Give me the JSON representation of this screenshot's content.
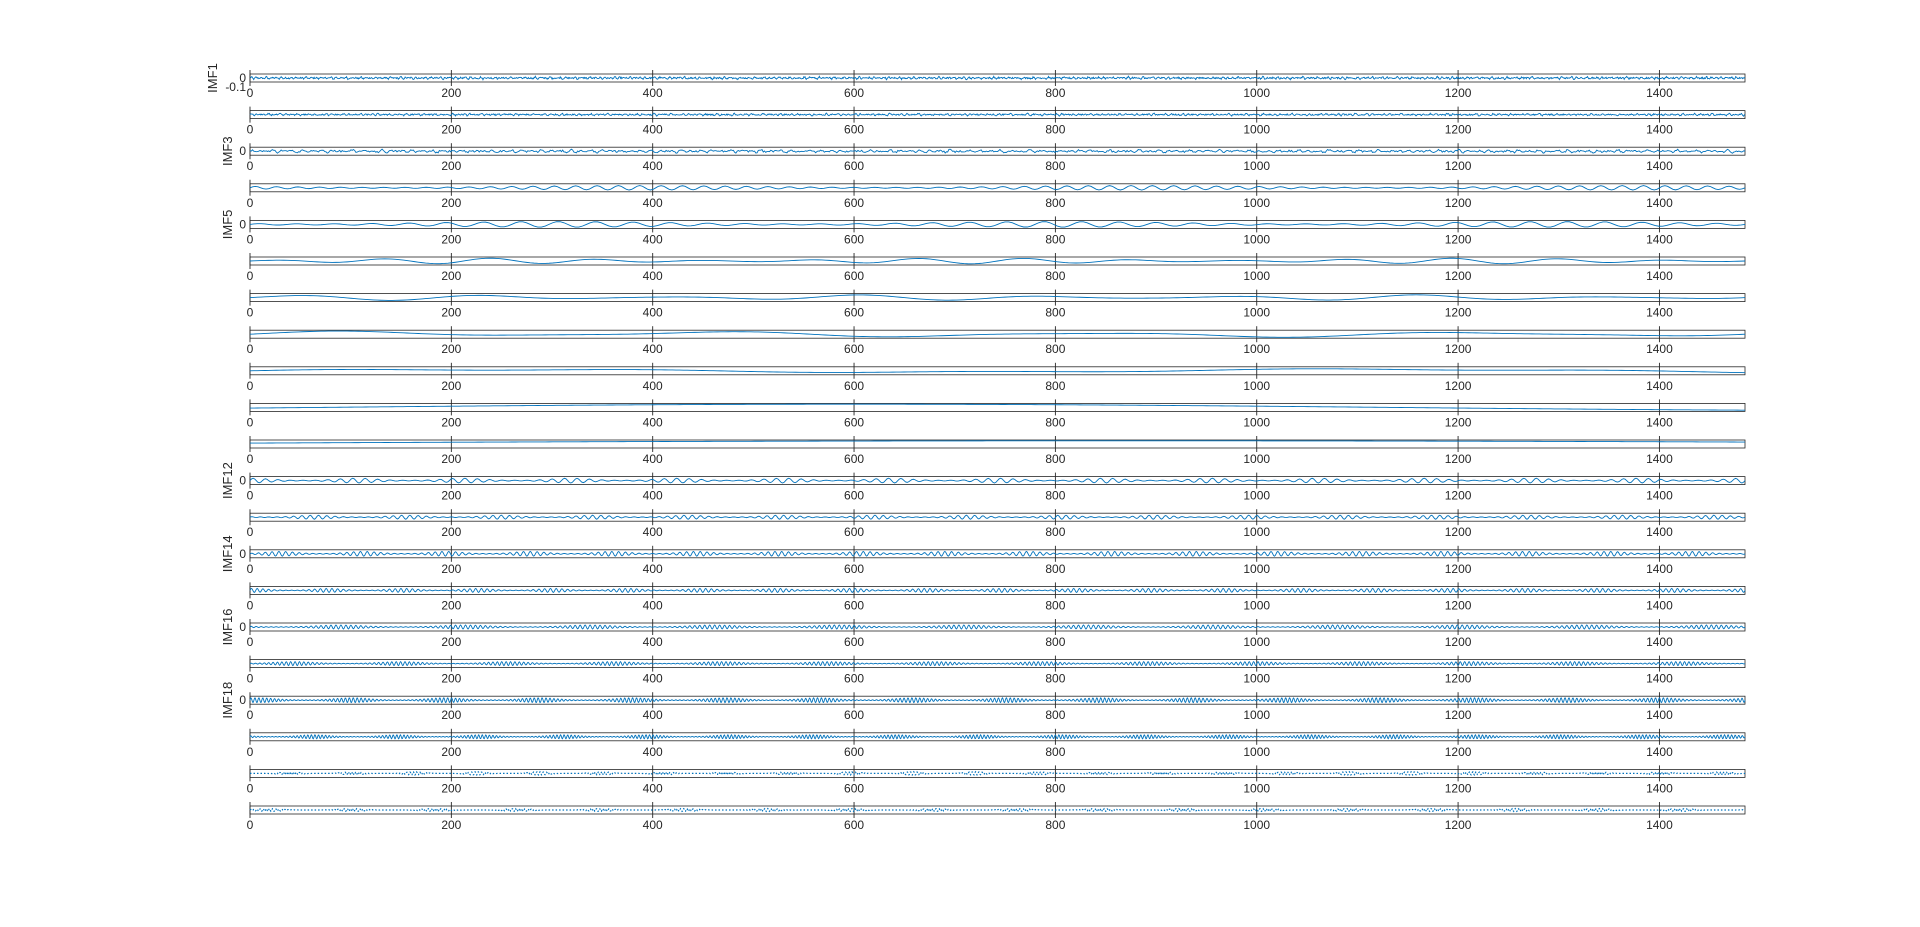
{
  "chart_data": {
    "type": "line",
    "title": "",
    "xlabel": "",
    "x_range": [
      0,
      1485
    ],
    "xticks": [
      0,
      200,
      400,
      600,
      800,
      1000,
      1200,
      1400
    ],
    "xtick_labels": [
      "0",
      "200",
      "400",
      "600",
      "800",
      "1000",
      "1200",
      "1400"
    ],
    "grid": true,
    "line_color": "#0072BD",
    "subplots": [
      {
        "ylabel": "IMF1",
        "ytick_labels": [
          "0",
          "-0.1"
        ],
        "style": "noise",
        "cycles": 300,
        "amplitude": 0.45
      },
      {
        "ylabel": "",
        "ytick_labels": [],
        "style": "noise",
        "cycles": 260,
        "amplitude": 0.4
      },
      {
        "ylabel": "IMF3",
        "ytick_labels": [
          "0"
        ],
        "style": "noise",
        "cycles": 150,
        "amplitude": 0.55
      },
      {
        "ylabel": "",
        "ytick_labels": [],
        "style": "wave",
        "cycles": 70,
        "amplitude": 0.55
      },
      {
        "ylabel": "IMF5",
        "ytick_labels": [
          "0"
        ],
        "style": "wave",
        "cycles": 40,
        "amplitude": 0.7
      },
      {
        "ylabel": "",
        "ytick_labels": [],
        "style": "wave",
        "cycles": 14,
        "amplitude": 0.7
      },
      {
        "ylabel": "",
        "ytick_labels": [],
        "style": "wave",
        "cycles": 8,
        "amplitude": 0.7
      },
      {
        "ylabel": "",
        "ytick_labels": [],
        "style": "wave",
        "cycles": 4,
        "amplitude": 0.8
      },
      {
        "ylabel": "",
        "ytick_labels": [],
        "style": "wave",
        "cycles": 1.6,
        "amplitude": 0.8
      },
      {
        "ylabel": "",
        "ytick_labels": [],
        "style": "trend",
        "cycles": 0.7,
        "amplitude": 0.8
      },
      {
        "ylabel": "",
        "ytick_labels": [],
        "style": "trend",
        "cycles": 0.35,
        "amplitude": 0.8
      },
      {
        "ylabel": "IMF12",
        "ytick_labels": [
          "0"
        ],
        "style": "burst",
        "cycles": 120,
        "amplitude": 0.6
      },
      {
        "ylabel": "",
        "ytick_labels": [],
        "style": "burst",
        "cycles": 180,
        "amplitude": 0.5
      },
      {
        "ylabel": "IMF14",
        "ytick_labels": [
          "0"
        ],
        "style": "burst",
        "cycles": 220,
        "amplitude": 0.6
      },
      {
        "ylabel": "",
        "ytick_labels": [],
        "style": "burst",
        "cycles": 260,
        "amplitude": 0.5
      },
      {
        "ylabel": "IMF16",
        "ytick_labels": [
          "0"
        ],
        "style": "burst",
        "cycles": 300,
        "amplitude": 0.5
      },
      {
        "ylabel": "",
        "ytick_labels": [],
        "style": "burst",
        "cycles": 340,
        "amplitude": 0.5
      },
      {
        "ylabel": "IMF18",
        "ytick_labels": [
          "0"
        ],
        "style": "burst",
        "cycles": 380,
        "amplitude": 0.6
      },
      {
        "ylabel": "",
        "ytick_labels": [],
        "style": "burst",
        "cycles": 420,
        "amplitude": 0.5
      },
      {
        "ylabel": "",
        "ytick_labels": [],
        "style": "dots",
        "cycles": 460,
        "amplitude": 0.4
      },
      {
        "ylabel": "",
        "ytick_labels": [],
        "style": "dots",
        "cycles": 480,
        "amplitude": 0.35
      }
    ]
  }
}
